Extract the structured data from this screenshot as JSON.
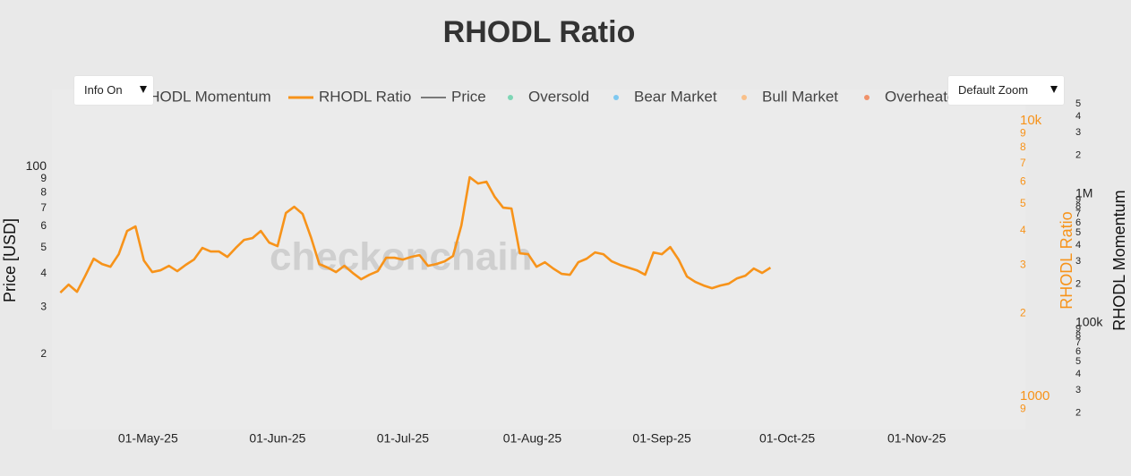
{
  "chart_data": {
    "type": "line",
    "title": "RHODL Ratio",
    "watermark": "checkonchain",
    "y_label": "Price [USD]",
    "y2_label": "RHODL Ratio",
    "y3_label": "RHODL Momentum",
    "log_y": true,
    "grid": false,
    "legend_position": "top",
    "legend": [
      {
        "name": "RHODL Momentum",
        "color": "#333333",
        "symbol": "line"
      },
      {
        "name": "RHODL Ratio",
        "color": "#f7931a",
        "symbol": "line"
      },
      {
        "name": "Price",
        "color": "#555555",
        "symbol": "line"
      },
      {
        "name": "Oversold",
        "color": "#7ed6b5",
        "symbol": "dot"
      },
      {
        "name": "Bear Market",
        "color": "#7ec8f0",
        "symbol": "dot"
      },
      {
        "name": "Bull Market",
        "color": "#f9c08a",
        "symbol": "dot"
      },
      {
        "name": "Overheated",
        "color": "#f0926a",
        "symbol": "dot"
      }
    ],
    "buttons": [
      {
        "label": "Info On"
      },
      {
        "label": "Default Zoom"
      }
    ],
    "xlim": [
      "2025-04-08",
      "2025-11-27"
    ],
    "xticks": [
      {
        "value": "2025-05-01",
        "label": "01-May-25"
      },
      {
        "value": "2025-06-01",
        "label": "01-Jun-25"
      },
      {
        "value": "2025-07-01",
        "label": "01-Jul-25"
      },
      {
        "value": "2025-08-01",
        "label": "01-Aug-25"
      },
      {
        "value": "2025-09-01",
        "label": "01-Sep-25"
      },
      {
        "value": "2025-10-01",
        "label": "01-Oct-25"
      },
      {
        "value": "2025-11-01",
        "label": "01-Nov-25"
      }
    ],
    "ylim": [
      10.5,
      194
    ],
    "yticks": [
      {
        "value": 20,
        "label": "2"
      },
      {
        "value": 30,
        "label": "3"
      },
      {
        "value": 40,
        "label": "4"
      },
      {
        "value": 50,
        "label": "5"
      },
      {
        "value": 60,
        "label": "6"
      },
      {
        "value": 70,
        "label": "7"
      },
      {
        "value": 80,
        "label": "8"
      },
      {
        "value": 90,
        "label": "9"
      },
      100
    ],
    "y2lim": [
      759,
      13000
    ],
    "y2ticks": [
      {
        "value": 900,
        "label": "9"
      },
      1000,
      {
        "value": 2000,
        "label": "2"
      },
      {
        "value": 3000,
        "label": "3"
      },
      {
        "value": 4000,
        "label": "4"
      },
      {
        "value": 5000,
        "label": "5"
      },
      {
        "value": 6000,
        "label": "6"
      },
      {
        "value": 7000,
        "label": "7"
      },
      {
        "value": 8000,
        "label": "8"
      },
      {
        "value": 9000,
        "label": "9"
      },
      {
        "value": 10000,
        "label": "10k"
      }
    ],
    "y2_color": "#f7931a",
    "y3lim": [
      14900,
      6490000
    ],
    "y3ticks": [
      {
        "value": 20000,
        "label": "2"
      },
      {
        "value": 30000,
        "label": "3"
      },
      {
        "value": 40000,
        "label": "4"
      },
      {
        "value": 50000,
        "label": "5"
      },
      {
        "value": 60000,
        "label": "6"
      },
      {
        "value": 70000,
        "label": "7"
      },
      {
        "value": 80000,
        "label": "8"
      },
      {
        "value": 90000,
        "label": "9"
      },
      {
        "value": 100000,
        "label": "100k"
      },
      {
        "value": 200000,
        "label": "2"
      },
      {
        "value": 300000,
        "label": "3"
      },
      {
        "value": 400000,
        "label": "4"
      },
      {
        "value": 500000,
        "label": "5"
      },
      {
        "value": 600000,
        "label": "6"
      },
      {
        "value": 700000,
        "label": "7"
      },
      {
        "value": 800000,
        "label": "8"
      },
      {
        "value": 900000,
        "label": "9"
      },
      {
        "value": 1000000,
        "label": "1M"
      },
      {
        "value": 2000000,
        "label": "2"
      },
      {
        "value": 3000000,
        "label": "3"
      },
      {
        "value": 4000000,
        "label": "4"
      },
      {
        "value": 5000000,
        "label": "5"
      }
    ],
    "x": [
      "2025-04-10",
      "2025-04-12",
      "2025-04-14",
      "2025-04-16",
      "2025-04-18",
      "2025-04-20",
      "2025-04-22",
      "2025-04-24",
      "2025-04-26",
      "2025-04-28",
      "2025-04-30",
      "2025-05-02",
      "2025-05-04",
      "2025-05-06",
      "2025-05-08",
      "2025-05-10",
      "2025-05-12",
      "2025-05-14",
      "2025-05-16",
      "2025-05-18",
      "2025-05-20",
      "2025-05-22",
      "2025-05-24",
      "2025-05-26",
      "2025-05-28",
      "2025-05-30",
      "2025-06-01",
      "2025-06-03",
      "2025-06-05",
      "2025-06-07",
      "2025-06-09",
      "2025-06-11",
      "2025-06-13",
      "2025-06-15",
      "2025-06-17",
      "2025-06-19",
      "2025-06-21",
      "2025-06-23",
      "2025-06-25",
      "2025-06-27",
      "2025-06-29",
      "2025-07-01",
      "2025-07-03",
      "2025-07-05",
      "2025-07-07",
      "2025-07-09",
      "2025-07-11",
      "2025-07-13",
      "2025-07-15",
      "2025-07-17",
      "2025-07-19",
      "2025-07-21",
      "2025-07-23",
      "2025-07-25",
      "2025-07-27",
      "2025-07-29",
      "2025-07-31",
      "2025-08-02",
      "2025-08-04",
      "2025-08-06",
      "2025-08-08",
      "2025-08-10",
      "2025-08-12",
      "2025-08-14",
      "2025-08-16",
      "2025-08-18",
      "2025-08-20",
      "2025-08-22",
      "2025-08-24",
      "2025-08-26",
      "2025-08-28",
      "2025-08-30",
      "2025-09-01",
      "2025-09-03",
      "2025-09-05",
      "2025-09-07",
      "2025-09-09",
      "2025-09-11",
      "2025-09-13",
      "2025-09-15",
      "2025-09-17",
      "2025-09-19",
      "2025-09-21",
      "2025-09-23",
      "2025-09-25",
      "2025-09-27"
    ],
    "series": [
      {
        "color": "#f7931a",
        "axis": "y2",
        "values": [
          2380,
          2546,
          2398,
          2744,
          3162,
          3023,
          2956,
          3283,
          3987,
          4140,
          3115,
          2828,
          2870,
          2979,
          2849,
          3001,
          3139,
          3459,
          3357,
          3357,
          3210,
          3459,
          3700,
          3755,
          3987,
          3617,
          3511,
          4630,
          4879,
          4596,
          3783,
          3023,
          2934,
          2828,
          2979,
          2807,
          2663,
          2765,
          2849,
          3187,
          3187,
          3139,
          3210,
          3258,
          2979,
          3023,
          3092,
          3234,
          4171,
          6245,
          5924,
          6014,
          5297,
          4843,
          4807,
          3307,
          3283,
          2956,
          3069,
          2912,
          2786,
          2765,
          3069,
          3162,
          3332,
          3283,
          3092,
          3001,
          2934,
          2870,
          2765,
          3332,
          3283,
          3484,
          3139,
          2724,
          2604,
          2527,
          2471,
          2527,
          2566,
          2683,
          2744,
          2912,
          2807,
          2934
        ]
      }
    ]
  }
}
